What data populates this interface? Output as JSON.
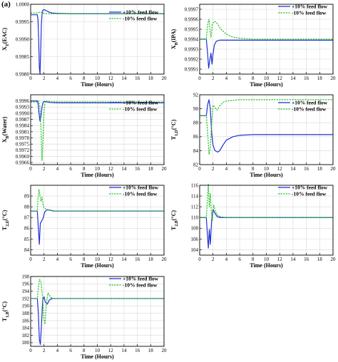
{
  "figure_label": "(a)",
  "chart_data": [
    {
      "type": "line",
      "xlabel": "Time (Hours)",
      "ylabel": "X$_{T}$(EAC)",
      "xlim": [
        0,
        20
      ],
      "ylim": [
        0.998,
        1.0
      ],
      "xticks": [
        0,
        2,
        4,
        6,
        8,
        10,
        12,
        14,
        16,
        18,
        20
      ],
      "yticks": [
        0.998,
        0.9985,
        0.999,
        0.9995,
        1.0
      ],
      "yticklabels": [
        "0.9980",
        "0.9985",
        "0.9990",
        "0.9995",
        "1.0000"
      ],
      "grid": true,
      "legend_position": "right",
      "series": [
        {
          "name": "+10% feed flow",
          "color": "#1f2fd6",
          "style": "solid",
          "x": [
            0,
            1.0,
            1.1,
            1.2,
            1.3,
            1.4,
            1.5,
            1.6,
            1.7,
            1.8,
            2.0,
            2.3,
            2.7,
            3.2,
            4.0,
            6.0,
            20
          ],
          "y": [
            0.9997,
            0.9997,
            0.99955,
            0.999,
            0.9982,
            0.998,
            0.9986,
            0.9994,
            0.9997,
            0.99982,
            0.99985,
            0.99982,
            0.99978,
            0.99975,
            0.99974,
            0.99973,
            0.99973
          ]
        },
        {
          "name": "-10% feed flow",
          "color": "#22c422",
          "style": "dashed",
          "x": [
            0,
            1.0,
            1.2,
            1.4,
            1.6,
            1.8,
            2.0,
            2.3,
            2.7,
            3.2,
            4.0,
            6.0,
            20
          ],
          "y": [
            0.99975,
            0.99975,
            0.99976,
            0.99978,
            0.99977,
            0.99975,
            0.99974,
            0.99973,
            0.99973,
            0.99973,
            0.99973,
            0.99973,
            0.99973
          ]
        }
      ]
    },
    {
      "type": "line",
      "xlabel": "Time (Hours)",
      "ylabel": "X$_{B}$(IPA)",
      "xlim": [
        0,
        20
      ],
      "ylim": [
        0.99905,
        0.99975
      ],
      "xticks": [
        0,
        2,
        4,
        6,
        8,
        10,
        12,
        14,
        16,
        18,
        20
      ],
      "yticks": [
        0.9991,
        0.9992,
        0.9993,
        0.9994,
        0.9995,
        0.9996,
        0.9997
      ],
      "yticklabels": [
        "0.9991",
        "0.9992",
        "0.9993",
        "0.9994",
        "0.9995",
        "0.9996",
        "0.9997"
      ],
      "grid": true,
      "legend_position": "top-right",
      "series": [
        {
          "name": "+10% feed flow",
          "color": "#1f2fd6",
          "style": "solid",
          "x": [
            0,
            1.0,
            1.2,
            1.35,
            1.5,
            1.7,
            1.85,
            2.0,
            2.2,
            2.5,
            3.0,
            4.0,
            6.0,
            20
          ],
          "y": [
            0.9994,
            0.9994,
            0.99925,
            0.99911,
            0.99918,
            0.99926,
            0.99915,
            0.99925,
            0.99934,
            0.99938,
            0.99939,
            0.99939,
            0.99939,
            0.99939
          ]
        },
        {
          "name": "-10% feed flow",
          "color": "#22c422",
          "style": "dashed",
          "x": [
            0,
            1.0,
            1.2,
            1.4,
            1.5,
            1.7,
            1.9,
            2.2,
            2.6,
            3.2,
            4.0,
            5.0,
            6.0,
            8.0,
            20
          ],
          "y": [
            0.9994,
            0.9994,
            0.99955,
            0.9996,
            0.99952,
            0.99942,
            0.99955,
            0.99958,
            0.99956,
            0.9995,
            0.99945,
            0.99942,
            0.99941,
            0.9994,
            0.9994
          ]
        }
      ]
    },
    {
      "type": "line",
      "xlabel": "Time (Hours)",
      "ylabel": "X$_{B}$(Water)",
      "xlim": [
        0,
        20
      ],
      "ylim": [
        0.9965,
        0.9999
      ],
      "xticks": [
        0,
        2,
        4,
        6,
        8,
        10,
        12,
        14,
        16,
        18,
        20
      ],
      "yticks": [
        0.9966,
        0.9969,
        0.9972,
        0.9975,
        0.9978,
        0.9981,
        0.9984,
        0.9987,
        0.999,
        0.9993,
        0.9996
      ],
      "yticklabels": [
        "0.9966",
        "0.9969",
        "0.9972",
        "0.9975",
        "0.9978",
        "0.9981",
        "0.9984",
        "0.9987",
        "0.9990",
        "0.9993",
        "0.9996"
      ],
      "grid": true,
      "legend_position": "right",
      "series": [
        {
          "name": "+10% feed flow",
          "color": "#1f2fd6",
          "style": "solid",
          "x": [
            0,
            1.0,
            1.1,
            1.25,
            1.4,
            1.55,
            1.7,
            1.85,
            2.0,
            2.4,
            3.0,
            4.0,
            20
          ],
          "y": [
            0.9996,
            0.9996,
            0.9995,
            0.999,
            0.99862,
            0.99885,
            0.9993,
            0.99952,
            0.99958,
            0.99955,
            0.99952,
            0.99951,
            0.99951
          ]
        },
        {
          "name": "-10% feed flow",
          "color": "#22c422",
          "style": "dashed",
          "x": [
            0,
            1.0,
            1.2,
            1.4,
            1.55,
            1.7,
            1.85,
            2.0,
            2.2,
            2.6,
            3.2,
            4.0,
            20
          ],
          "y": [
            0.99955,
            0.99955,
            0.9996,
            0.9993,
            0.9982,
            0.9967,
            0.9978,
            0.9991,
            0.9996,
            0.99958,
            0.99956,
            0.99955,
            0.99955
          ]
        }
      ]
    },
    {
      "type": "line",
      "xlabel": "Time (Hours)",
      "ylabel": "T$_{1,D}$(°C)",
      "xlim": [
        0,
        20
      ],
      "ylim": [
        82,
        92
      ],
      "xticks": [
        0,
        2,
        4,
        6,
        8,
        10,
        12,
        14,
        16,
        18,
        20
      ],
      "yticks": [
        82,
        84,
        86,
        88,
        90,
        92
      ],
      "yticklabels": [
        "82",
        "84",
        "86",
        "88",
        "90",
        "92"
      ],
      "grid": true,
      "legend_position": "right",
      "series": [
        {
          "name": "+10% feed flow",
          "color": "#1f2fd6",
          "style": "solid",
          "x": [
            0,
            1.0,
            1.2,
            1.4,
            1.6,
            1.8,
            2.0,
            2.3,
            2.7,
            3.0,
            3.5,
            4.0,
            5.0,
            6.0,
            8.0,
            12.0,
            20
          ],
          "y": [
            89.0,
            89.0,
            90.6,
            91.3,
            90.0,
            86.5,
            84.8,
            84.0,
            83.8,
            84.0,
            84.8,
            85.5,
            86.0,
            86.2,
            86.3,
            86.3,
            86.3
          ]
        },
        {
          "name": "-10% feed flow",
          "color": "#22c422",
          "style": "dashed",
          "x": [
            0,
            1.0,
            1.2,
            1.4,
            1.6,
            1.8,
            2.0,
            2.3,
            2.6,
            3.0,
            3.5,
            4.0,
            5.0,
            6.0,
            8.0,
            20
          ],
          "y": [
            89.0,
            89.0,
            86.5,
            83.5,
            84.5,
            88.0,
            90.5,
            90.2,
            89.8,
            90.4,
            90.9,
            91.1,
            91.2,
            91.3,
            91.3,
            91.3
          ]
        }
      ]
    },
    {
      "type": "line",
      "xlabel": "Time (Hours)",
      "ylabel": "T$_{2,D}$(°C)",
      "xlim": [
        0,
        20
      ],
      "ylim": [
        83.5,
        90
      ],
      "xticks": [
        0,
        2,
        4,
        6,
        8,
        10,
        12,
        14,
        16,
        18,
        20
      ],
      "yticks": [
        84,
        85,
        86,
        87,
        88,
        89
      ],
      "yticklabels": [
        "84",
        "85",
        "86",
        "87",
        "88",
        "89"
      ],
      "grid": true,
      "legend_position": "top-right",
      "series": [
        {
          "name": "+10% feed flow",
          "color": "#1f2fd6",
          "style": "solid",
          "x": [
            0,
            1.0,
            1.15,
            1.3,
            1.45,
            1.6,
            1.75,
            1.9,
            2.1,
            2.4,
            2.8,
            3.5,
            5.0,
            20
          ],
          "y": [
            87.6,
            87.6,
            86.0,
            84.5,
            86.5,
            86.6,
            86.8,
            87.0,
            87.5,
            87.7,
            87.7,
            87.6,
            87.6,
            87.6
          ]
        },
        {
          "name": "-10% feed flow",
          "color": "#22c422",
          "style": "dashed",
          "x": [
            0,
            1.0,
            1.1,
            1.25,
            1.4,
            1.55,
            1.7,
            1.85,
            2.0,
            2.3,
            2.7,
            3.2,
            4.0,
            20
          ],
          "y": [
            87.6,
            87.6,
            88.8,
            89.6,
            89.0,
            88.5,
            88.9,
            88.2,
            87.9,
            87.8,
            87.7,
            87.6,
            87.6,
            87.6
          ]
        }
      ]
    },
    {
      "type": "line",
      "xlabel": "Time (Hours)",
      "ylabel": "T$_{2,B}$(°C)",
      "xlim": [
        0,
        20
      ],
      "ylim": [
        103,
        116
      ],
      "xticks": [
        0,
        2,
        4,
        6,
        8,
        10,
        12,
        14,
        16,
        18,
        20
      ],
      "yticks": [
        104,
        106,
        108,
        110,
        112,
        114,
        116
      ],
      "yticklabels": [
        "104",
        "106",
        "108",
        "110",
        "112",
        "114",
        "116"
      ],
      "grid": true,
      "legend_position": "top-right",
      "series": [
        {
          "name": "+10% feed flow",
          "color": "#1f2fd6",
          "style": "solid",
          "x": [
            0,
            1.0,
            1.15,
            1.3,
            1.45,
            1.6,
            1.8,
            2.0,
            2.3,
            2.6,
            3.0,
            3.5,
            4.5,
            20
          ],
          "y": [
            110.0,
            110.0,
            107.0,
            104.3,
            107.8,
            105.0,
            109.5,
            111.5,
            110.8,
            110.2,
            110.0,
            110.0,
            110.0,
            110.0
          ]
        },
        {
          "name": "-10% feed flow",
          "color": "#22c422",
          "style": "dashed",
          "x": [
            0,
            1.0,
            1.15,
            1.3,
            1.45,
            1.6,
            1.75,
            1.9,
            2.1,
            2.4,
            2.8,
            3.3,
            4.0,
            20
          ],
          "y": [
            110.0,
            110.0,
            113.0,
            116.2,
            112.0,
            114.5,
            111.0,
            109.5,
            112.3,
            111.0,
            110.3,
            110.1,
            110.0,
            110.0
          ]
        }
      ]
    },
    {
      "type": "line",
      "xlabel": "Time (Hours)",
      "ylabel": "T$_{1,B}$(°C)",
      "xlim": [
        0,
        20
      ],
      "ylim": [
        179,
        198
      ],
      "xticks": [
        0,
        2,
        4,
        6,
        8,
        10,
        12,
        14,
        16,
        18,
        20
      ],
      "yticks": [
        180,
        182,
        184,
        186,
        188,
        190,
        192,
        194,
        196,
        198
      ],
      "yticklabels": [
        "180",
        "182",
        "184",
        "186",
        "188",
        "190",
        "192",
        "194",
        "196",
        "198"
      ],
      "grid": true,
      "legend_position": "top-right",
      "series": [
        {
          "name": "+10% feed flow",
          "color": "#1f2fd6",
          "style": "solid",
          "x": [
            0,
            1.0,
            1.15,
            1.3,
            1.45,
            1.6,
            1.8,
            2.0,
            2.2,
            2.5,
            2.8,
            3.2,
            4.0,
            20
          ],
          "y": [
            192.0,
            192.0,
            188.0,
            181.0,
            179.5,
            184.0,
            191.5,
            192.5,
            191.0,
            190.5,
            191.6,
            192.0,
            192.0,
            192.0
          ]
        },
        {
          "name": "-10% feed flow",
          "color": "#22c422",
          "style": "dashed",
          "x": [
            0,
            1.0,
            1.15,
            1.35,
            1.55,
            1.75,
            1.95,
            2.15,
            2.35,
            2.6,
            3.0,
            3.5,
            4.5,
            20
          ],
          "y": [
            192.0,
            192.0,
            195.0,
            197.2,
            196.5,
            193.0,
            187.0,
            185.0,
            190.5,
            193.5,
            192.3,
            192.0,
            192.0,
            192.0
          ]
        }
      ]
    }
  ]
}
